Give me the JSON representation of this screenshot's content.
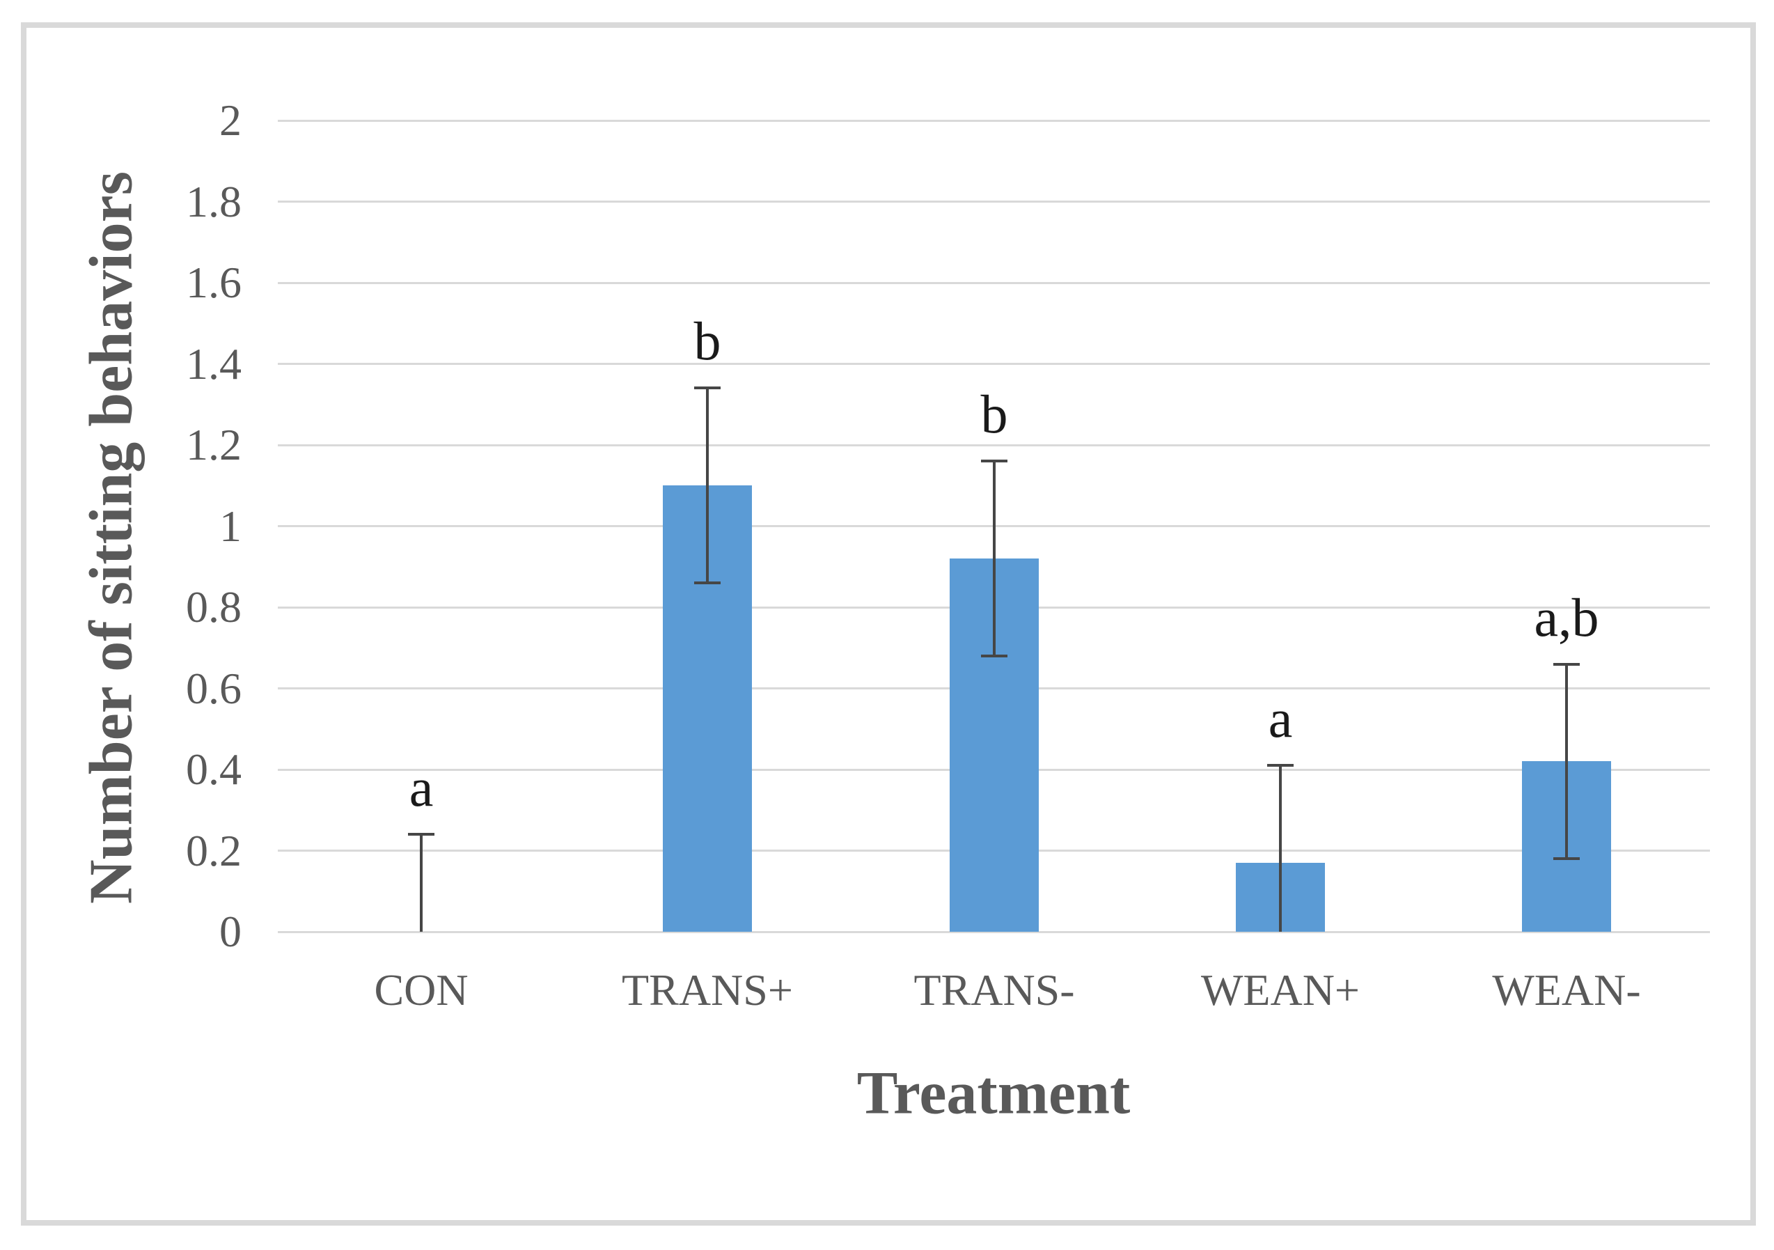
{
  "chart_data": {
    "type": "bar",
    "title": "",
    "xlabel": "Treatment",
    "ylabel": "Number of sitting behaviors",
    "categories": [
      "CON",
      "TRANS+",
      "TRANS-",
      "WEAN+",
      "WEAN-"
    ],
    "values": [
      0,
      1.1,
      0.92,
      0.17,
      0.42
    ],
    "error_bars": {
      "top": [
        0.24,
        1.34,
        1.16,
        0.41,
        0.66
      ],
      "bottom": [
        0,
        0.86,
        0.68,
        0,
        0.18
      ]
    },
    "significance_letters": [
      "a",
      "b",
      "b",
      "a",
      "a,b"
    ],
    "ylim": [
      0,
      2
    ],
    "ytick_step": 0.2,
    "yticks": [
      "2",
      "1.8",
      "1.6",
      "1.4",
      "1.2",
      "1",
      "0.8",
      "0.6",
      "0.4",
      "0.2",
      "0"
    ],
    "grid": true,
    "legend": "none",
    "colors": {
      "bar": "#5B9BD5",
      "error_bar": "#464646",
      "gridline": "#D9D9D9",
      "frame_border": "#D9D9D9",
      "axis_text": "#595959",
      "significance_letter": "#1A1A1A"
    }
  }
}
